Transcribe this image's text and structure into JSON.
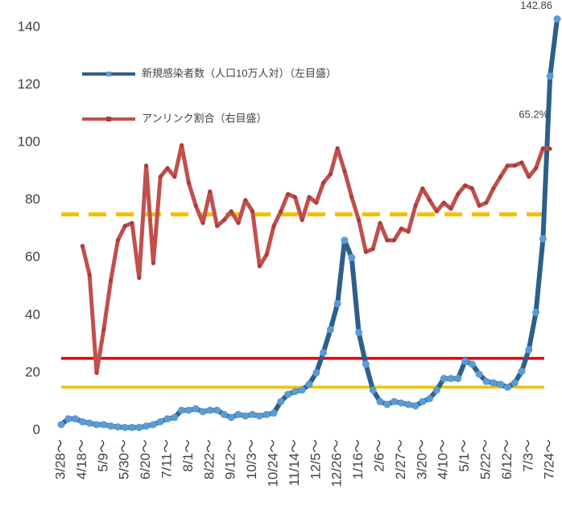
{
  "chart_data": {
    "type": "line",
    "categories": [
      "3/28～",
      null,
      null,
      "4/18～",
      null,
      null,
      "5/9～",
      null,
      null,
      "5/30～",
      null,
      null,
      "6/20～",
      null,
      null,
      "7/11～",
      null,
      null,
      "8/1～",
      null,
      null,
      "8/22～",
      null,
      null,
      "9/12～",
      null,
      null,
      "10/3～",
      null,
      null,
      "10/24～",
      null,
      null,
      "11/14～",
      null,
      null,
      "12/5～",
      null,
      null,
      "12/26～",
      null,
      null,
      "1/16～",
      null,
      null,
      "2/6～",
      null,
      null,
      "2/27～",
      null,
      null,
      "3/20～",
      null,
      null,
      "4/10～",
      null,
      null,
      "5/1～",
      null,
      null,
      "5/22～",
      null,
      null,
      "6/12～",
      null,
      null,
      "7/3～",
      null,
      null,
      "7/24～",
      null
    ],
    "series": [
      {
        "name": "新規感染者数（人口10万人対）（左目盛）",
        "color": "#2e5f8a",
        "marker_color": "#5b9bd5",
        "values": [
          2,
          4,
          4,
          3,
          2.5,
          2,
          2,
          1.5,
          1.2,
          1,
          1,
          1,
          1.5,
          2,
          3,
          4,
          4.5,
          7,
          7,
          7.5,
          6.5,
          7,
          7,
          5.5,
          4.5,
          5.5,
          5,
          5.5,
          5,
          5.5,
          6,
          10,
          12.5,
          13.5,
          14,
          16,
          20,
          27,
          35,
          44,
          66,
          60,
          34,
          23,
          14,
          10,
          9,
          10,
          9.5,
          9,
          8.5,
          10,
          11,
          14,
          18,
          18,
          18,
          24,
          23,
          19.5,
          17,
          16.5,
          16,
          15,
          16.5,
          20.5,
          28,
          41,
          66.5,
          123,
          142.86
        ],
        "labeled": [
          70
        ]
      },
      {
        "name": "アンリンク割合（右目盛）",
        "color": "#c0504d",
        "marker_color": "#a83c3a",
        "axis": "y2",
        "values": [
          null,
          null,
          null,
          42.7,
          36,
          13.3,
          23.3,
          34.7,
          44,
          47.3,
          48,
          35.3,
          61.3,
          38.7,
          58.7,
          60.7,
          58.7,
          66,
          57.3,
          52,
          48,
          55.3,
          47.3,
          48.7,
          50.7,
          48,
          53.3,
          50.7,
          38,
          40.7,
          47.3,
          50.7,
          54.7,
          54,
          48.7,
          54,
          52.7,
          57.3,
          59.3,
          65.3,
          60,
          54,
          48.7,
          41.3,
          42,
          48,
          44,
          44,
          46.7,
          46,
          52,
          56,
          53.3,
          50.7,
          52.7,
          51.3,
          54.7,
          56.7,
          56,
          52,
          52.7,
          56,
          58.7,
          61.3,
          61.3,
          62,
          58.7,
          60.7,
          65.3,
          65.2,
          null
        ],
        "value_labels": [
          null,
          null,
          null,
          null,
          null,
          null,
          null,
          null,
          null,
          null,
          null,
          null,
          null,
          null,
          null,
          null,
          null,
          null,
          null,
          null,
          null,
          null,
          null,
          null,
          null,
          null,
          null,
          null,
          null,
          null,
          null,
          null,
          null,
          null,
          null,
          null,
          null,
          null,
          null,
          null,
          null,
          null,
          null,
          null,
          null,
          null,
          null,
          null,
          null,
          null,
          null,
          null,
          null,
          null,
          null,
          null,
          null,
          null,
          null,
          null,
          null,
          null,
          null,
          null,
          null,
          null,
          null,
          null,
          null,
          "65.2%",
          null
        ]
      }
    ],
    "ylim": [
      0,
      150
    ],
    "yticks": [
      0,
      20,
      40,
      60,
      80,
      100,
      120,
      140
    ],
    "y2lim": [
      0,
      100
    ],
    "reference_lines": [
      {
        "value": 50,
        "axis": "y2",
        "color": "#f5c000",
        "dashed": true
      },
      {
        "value": 25,
        "color": "#e00000"
      },
      {
        "value": 15,
        "color": "#f5c000"
      }
    ],
    "grid": false,
    "legend": "upper left"
  }
}
